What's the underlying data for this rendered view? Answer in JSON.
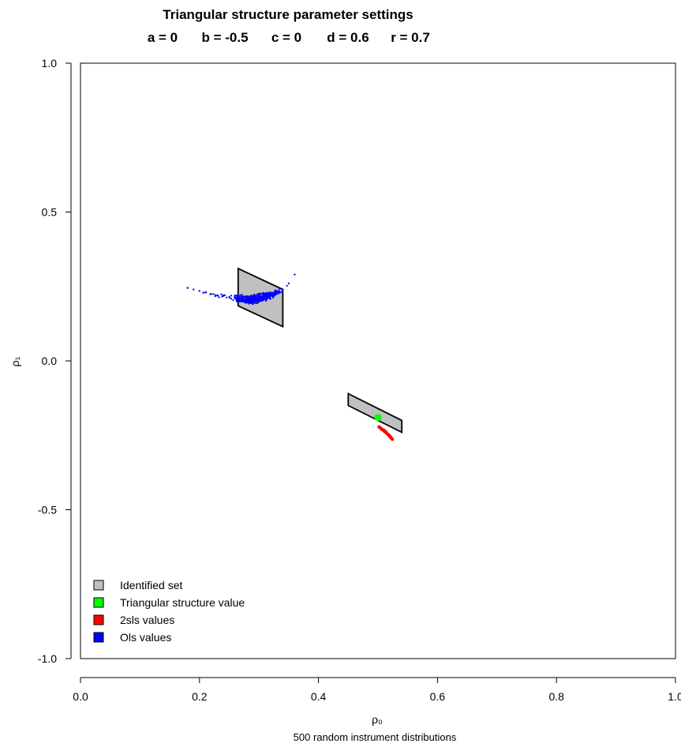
{
  "chart_data": {
    "type": "scatter",
    "title": "Triangular structure parameter settings",
    "subtitle": [
      "a = 0",
      "b = -0.5",
      "c = 0",
      "d = 0.6",
      "r = 0.7"
    ],
    "xlabel": "ρ₀",
    "ylabel": "ρ₁",
    "footnote": "500 random instrument distributions",
    "xlim": [
      0.0,
      1.0
    ],
    "ylim": [
      -1.0,
      1.0
    ],
    "xticks": [
      "0.0",
      "0.2",
      "0.4",
      "0.6",
      "0.8",
      "1.0"
    ],
    "yticks": [
      "-1.0",
      "-0.5",
      "0.0",
      "0.5",
      "1.0"
    ],
    "xtick_values": [
      0.0,
      0.2,
      0.4,
      0.6,
      0.8,
      1.0
    ],
    "ytick_values": [
      -1.0,
      -0.5,
      0.0,
      0.5,
      1.0
    ],
    "grid": false,
    "legend_position": "bottom-left",
    "identified_sets": [
      {
        "vertices": [
          [
            0.265,
            0.31
          ],
          [
            0.34,
            0.24
          ],
          [
            0.34,
            0.115
          ],
          [
            0.265,
            0.185
          ]
        ]
      },
      {
        "vertices": [
          [
            0.45,
            -0.11
          ],
          [
            0.54,
            -0.2
          ],
          [
            0.54,
            -0.24
          ],
          [
            0.45,
            -0.15
          ]
        ]
      }
    ],
    "triangular_structure_value": {
      "x": 0.5,
      "y": -0.19
    },
    "series": [
      {
        "name": "Identified set",
        "color": "#c0c0c0",
        "kind": "polygon"
      },
      {
        "name": "Triangular structure value",
        "color": "#00ff00",
        "kind": "point"
      },
      {
        "name": "2sls values",
        "color": "#ff0000",
        "kind": "scatter",
        "points": [
          [
            0.502,
            -0.222
          ],
          [
            0.505,
            -0.227
          ],
          [
            0.508,
            -0.232
          ],
          [
            0.511,
            -0.237
          ],
          [
            0.514,
            -0.242
          ],
          [
            0.517,
            -0.247
          ],
          [
            0.52,
            -0.253
          ],
          [
            0.522,
            -0.258
          ],
          [
            0.524,
            -0.263
          ],
          [
            0.51,
            -0.233
          ],
          [
            0.513,
            -0.239
          ],
          [
            0.506,
            -0.229
          ],
          [
            0.518,
            -0.249
          ],
          [
            0.521,
            -0.256
          ]
        ]
      },
      {
        "name": "Ols values",
        "color": "#0000ff",
        "kind": "scatter",
        "cloud": {
          "x_range": [
            0.18,
            0.36
          ],
          "y_center": 0.215,
          "count": 500
        },
        "points": [
          [
            0.18,
            0.245
          ],
          [
            0.19,
            0.24
          ],
          [
            0.2,
            0.235
          ],
          [
            0.21,
            0.23
          ],
          [
            0.22,
            0.225
          ],
          [
            0.23,
            0.22
          ],
          [
            0.24,
            0.22
          ],
          [
            0.25,
            0.215
          ],
          [
            0.26,
            0.21
          ],
          [
            0.27,
            0.21
          ],
          [
            0.28,
            0.205
          ],
          [
            0.29,
            0.205
          ],
          [
            0.3,
            0.21
          ],
          [
            0.31,
            0.215
          ],
          [
            0.32,
            0.22
          ],
          [
            0.33,
            0.23
          ],
          [
            0.34,
            0.24
          ],
          [
            0.35,
            0.26
          ],
          [
            0.36,
            0.29
          ]
        ]
      }
    ]
  }
}
